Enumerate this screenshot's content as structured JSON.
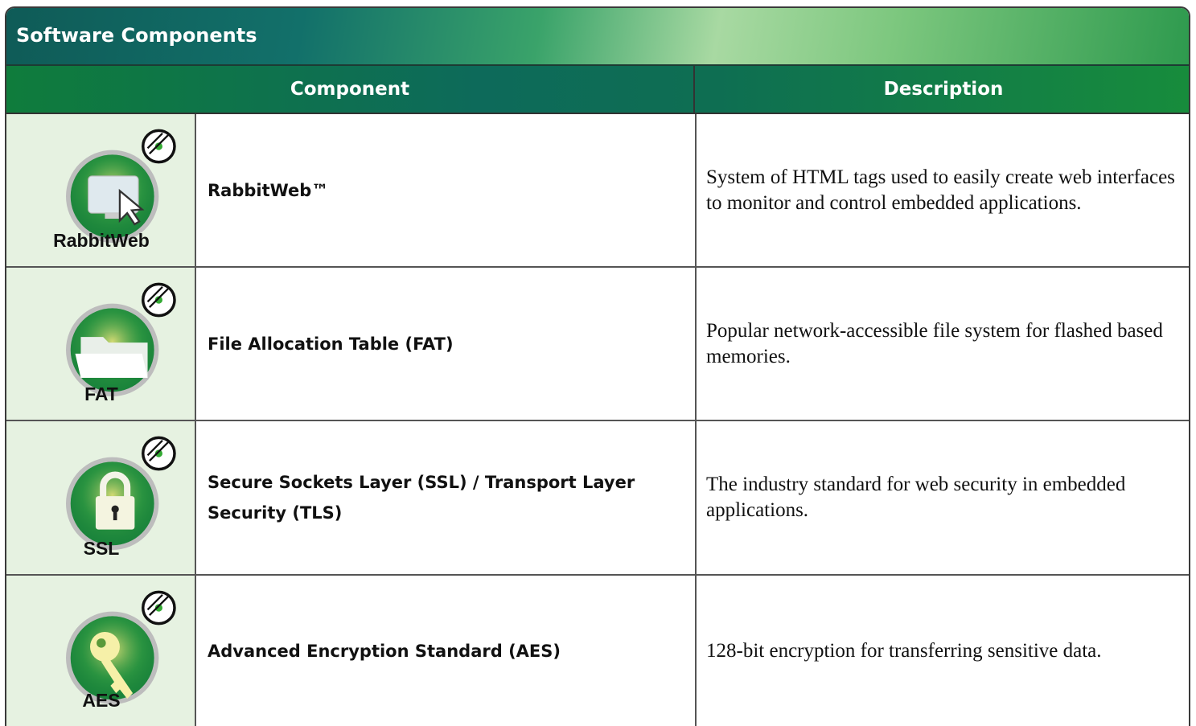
{
  "header": {
    "title": "Software Components"
  },
  "table": {
    "columns": [
      "Component",
      "Description"
    ],
    "rows": [
      {
        "icon_label": "RabbitWeb",
        "component": "RabbitWeb™",
        "description": "System of HTML tags used to easily create web interfaces to monitor and control embedded applications."
      },
      {
        "icon_label": "FAT",
        "component": "File Allocation Table (FAT)",
        "description": "Popular network-accessible file system for flashed based memories."
      },
      {
        "icon_label": "SSL",
        "component": "Secure Sockets Layer (SSL) / Transport Layer Security (TLS)",
        "description": "The industry standard for web security in embedded applications."
      },
      {
        "icon_label": "AES",
        "component": "Advanced Encryption Standard (AES)",
        "description": "128-bit encryption for transferring sensitive data."
      }
    ]
  }
}
